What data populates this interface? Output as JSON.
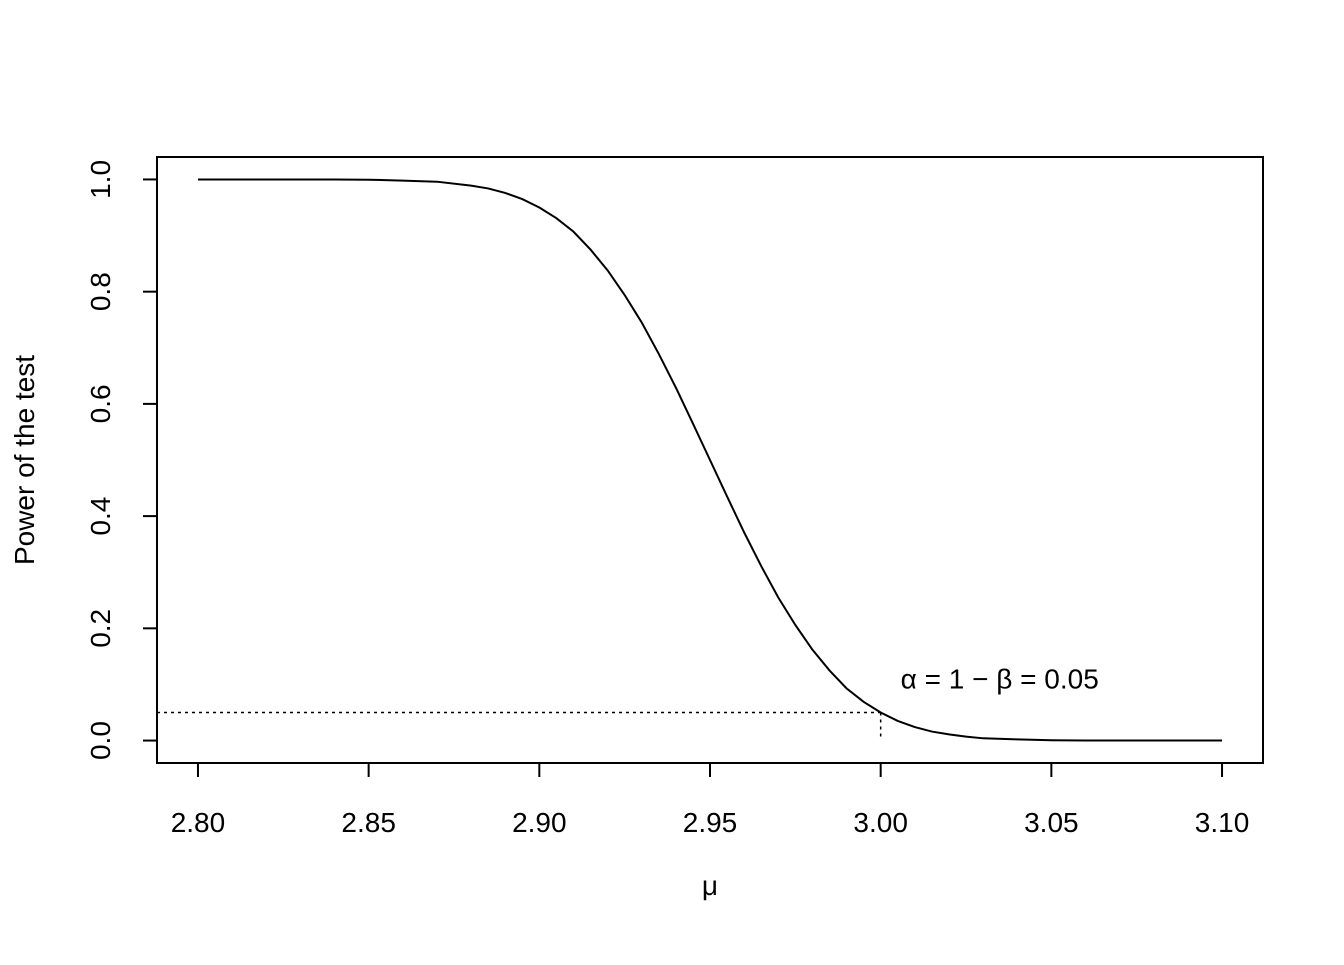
{
  "chart_data": {
    "type": "line",
    "x_label": "μ",
    "y_label": "Power of the test",
    "annotation": "α = 1 − β = 0.05",
    "reference": {
      "x": 3.0,
      "y": 0.05
    },
    "x": [
      2.8,
      2.81,
      2.82,
      2.83,
      2.84,
      2.85,
      2.86,
      2.87,
      2.88,
      2.885,
      2.89,
      2.895,
      2.9,
      2.905,
      2.91,
      2.915,
      2.92,
      2.925,
      2.93,
      2.935,
      2.94,
      2.945,
      2.95,
      2.955,
      2.96,
      2.965,
      2.97,
      2.975,
      2.98,
      2.985,
      2.99,
      2.995,
      3.0,
      3.005,
      3.01,
      3.015,
      3.02,
      3.025,
      3.03,
      3.04,
      3.05,
      3.06,
      3.07,
      3.08,
      3.09,
      3.1
    ],
    "series": [
      {
        "name": "power",
        "color": "#000000",
        "values": [
          1.0,
          1.0,
          1.0,
          1.0,
          1.0,
          0.9995,
          0.998,
          0.996,
          0.989,
          0.984,
          0.976,
          0.965,
          0.95,
          0.931,
          0.907,
          0.875,
          0.838,
          0.794,
          0.745,
          0.689,
          0.629,
          0.565,
          0.5,
          0.435,
          0.371,
          0.311,
          0.255,
          0.206,
          0.162,
          0.125,
          0.093,
          0.069,
          0.05,
          0.035,
          0.024,
          0.016,
          0.011,
          0.007,
          0.004,
          0.002,
          0.0005,
          0.0,
          0.0,
          0.0,
          0.0,
          0.0
        ]
      }
    ],
    "xlim": [
      2.788,
      3.112
    ],
    "ylim": [
      -0.04,
      1.04
    ],
    "xticks": [
      {
        "value": 2.8,
        "label": "2.80"
      },
      {
        "value": 2.85,
        "label": "2.85"
      },
      {
        "value": 2.9,
        "label": "2.90"
      },
      {
        "value": 2.95,
        "label": "2.95"
      },
      {
        "value": 3.0,
        "label": "3.00"
      },
      {
        "value": 3.05,
        "label": "3.05"
      },
      {
        "value": 3.1,
        "label": "3.10"
      }
    ],
    "yticks": [
      {
        "value": 0,
        "label": "0.0"
      },
      0.2,
      0.4,
      0.6,
      0.8,
      {
        "value": 1,
        "label": "1.0"
      }
    ],
    "grid": false
  }
}
